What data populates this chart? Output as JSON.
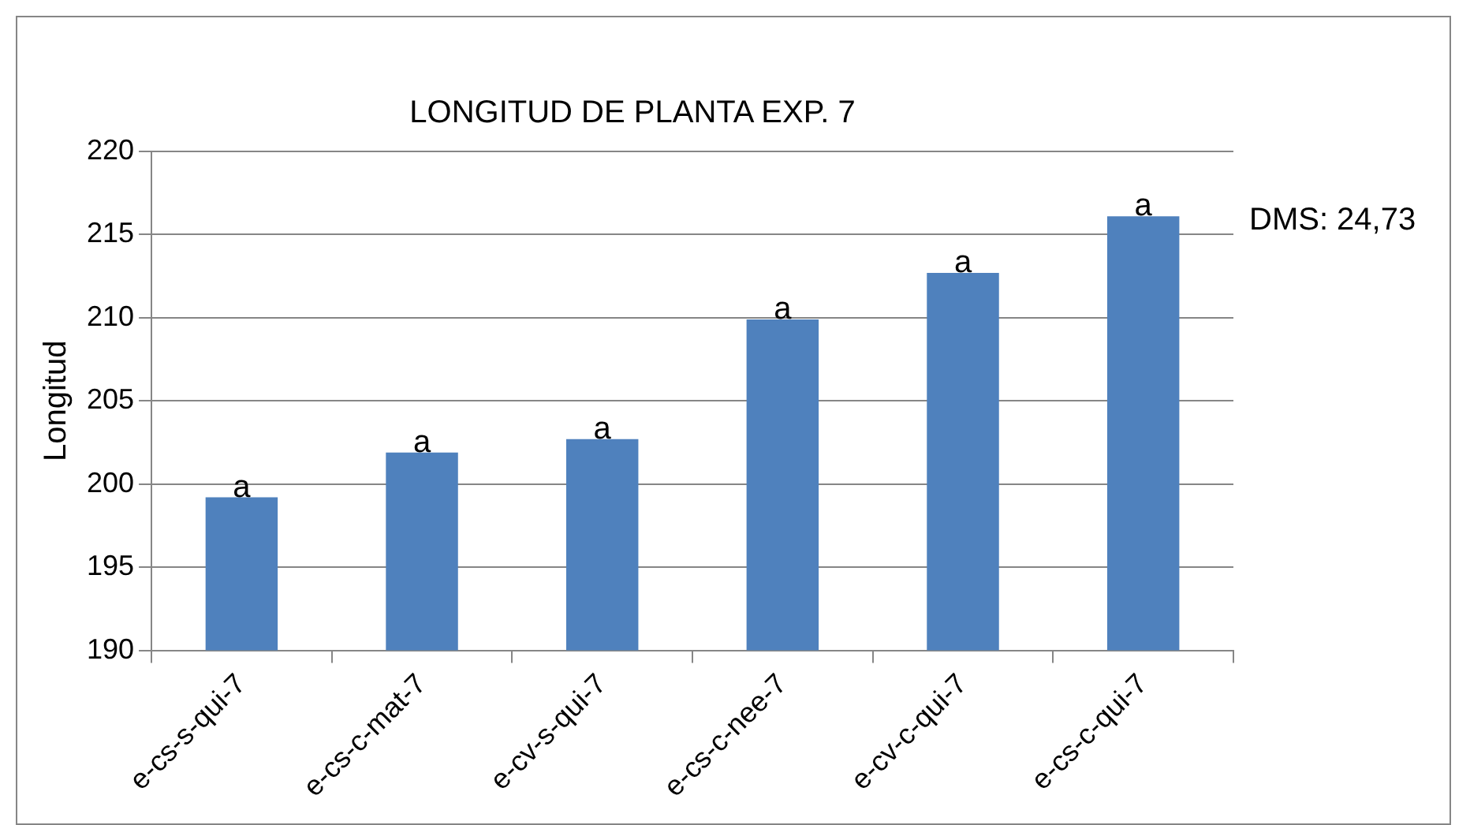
{
  "chart_data": {
    "type": "bar",
    "title": "LONGITUD DE PLANTA EXP. 7",
    "ylabel": "Longitud",
    "categories": [
      "e-cs-s-qui-7",
      "e-cs-c-mat-7",
      "e-cv-s-qui-7",
      "e-cs-c-nee-7",
      "e-cv-c-qui-7",
      "e-cs-c-qui-7"
    ],
    "values": [
      199.2,
      201.9,
      202.7,
      209.9,
      212.7,
      216.1
    ],
    "value_labels": [
      "a",
      "a",
      "a",
      "a",
      "a",
      "a"
    ],
    "color": "#4f81bd",
    "ylim": [
      190,
      220
    ],
    "yticks": [
      190,
      195,
      200,
      205,
      210,
      215,
      220
    ],
    "grid": "y",
    "legend": false,
    "annotations": [
      "DMS: 24,73"
    ]
  }
}
